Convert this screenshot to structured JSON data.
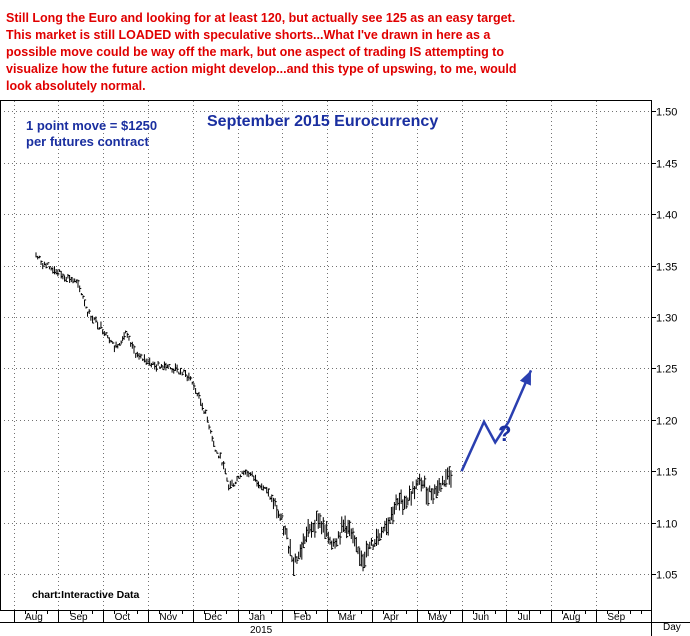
{
  "commentary": [
    "Still Long the Euro and looking for at least 120, but actually see 125 as an easy target.",
    "This market is still LOADED with speculative shorts...What I've drawn in here as a",
    "possible move could be way off the mark, but one aspect of trading IS attempting to",
    "visualize how the future action might develop...and this type of upswing, to me, would",
    "look absolutely normal."
  ],
  "point_note": [
    "1 point move = $1250",
    "per futures contract"
  ],
  "source_credit": "chart:Interactive Data",
  "question_mark": "?",
  "year_label": "2015",
  "axis_right_label": "Day",
  "colors": {
    "commentary": "#e00000",
    "title": "#1a2fa0",
    "note": "#1a2fa0",
    "projection": "#2a3fb0",
    "price_bars": "#000000",
    "grid": "#000000",
    "frame": "#000000"
  },
  "chart_data": {
    "type": "line",
    "title": "September 2015 Eurocurrency",
    "ylim": [
      1.015,
      1.51
    ],
    "yticks": [
      "1.05",
      "1.10",
      "1.15",
      "1.20",
      "1.25",
      "1.30",
      "1.35",
      "1.40",
      "1.45",
      "1.50"
    ],
    "month_labels": [
      "Aug",
      "Sep",
      "Oct",
      "Nov",
      "Dec",
      "Jan",
      "Feb",
      "Mar",
      "Apr",
      "May",
      "Jun",
      "Jul",
      "Aug",
      "Sep"
    ],
    "grid": "dotted",
    "series": [
      {
        "style": "price-bars",
        "x": [
          0,
          0.15,
          0.3,
          0.45,
          0.6,
          0.75,
          0.9,
          1.05,
          1.15,
          1.3,
          1.45,
          1.6,
          1.75,
          1.9,
          2,
          2.15,
          2.3,
          2.5,
          2.65,
          2.8,
          2.9,
          3,
          3.15,
          3.3,
          3.45,
          3.6,
          3.75,
          3.9,
          4,
          4.15,
          4.3,
          4.45,
          4.6,
          4.75,
          4.9,
          5,
          5.15,
          5.3,
          5.45,
          5.6,
          5.75,
          5.9,
          6,
          6.15,
          6.3,
          6.45,
          6.6,
          6.75,
          6.9,
          7,
          7.15,
          7.3,
          7.45,
          7.6,
          7.75,
          7.9,
          8,
          8.15,
          8.3,
          8.45,
          8.6,
          8.75,
          8.9,
          9,
          9.15,
          9.3
        ],
        "values": [
          1.36,
          1.352,
          1.348,
          1.345,
          1.34,
          1.338,
          1.333,
          1.32,
          1.305,
          1.297,
          1.29,
          1.283,
          1.27,
          1.278,
          1.283,
          1.27,
          1.26,
          1.258,
          1.252,
          1.253,
          1.254,
          1.25,
          1.248,
          1.245,
          1.24,
          1.225,
          1.21,
          1.19,
          1.17,
          1.16,
          1.135,
          1.14,
          1.15,
          1.148,
          1.142,
          1.138,
          1.13,
          1.12,
          1.105,
          1.085,
          1.063,
          1.07,
          1.085,
          1.095,
          1.105,
          1.09,
          1.082,
          1.087,
          1.098,
          1.092,
          1.073,
          1.066,
          1.075,
          1.085,
          1.096,
          1.103,
          1.115,
          1.12,
          1.123,
          1.133,
          1.14,
          1.129,
          1.131,
          1.135,
          1.144,
          1.148
        ]
      },
      {
        "style": "projection-arrow",
        "x": [
          9.5,
          10,
          10.25,
          10.55,
          11.05
        ],
        "values": [
          1.15,
          1.198,
          1.178,
          1.198,
          1.248
        ]
      }
    ]
  }
}
